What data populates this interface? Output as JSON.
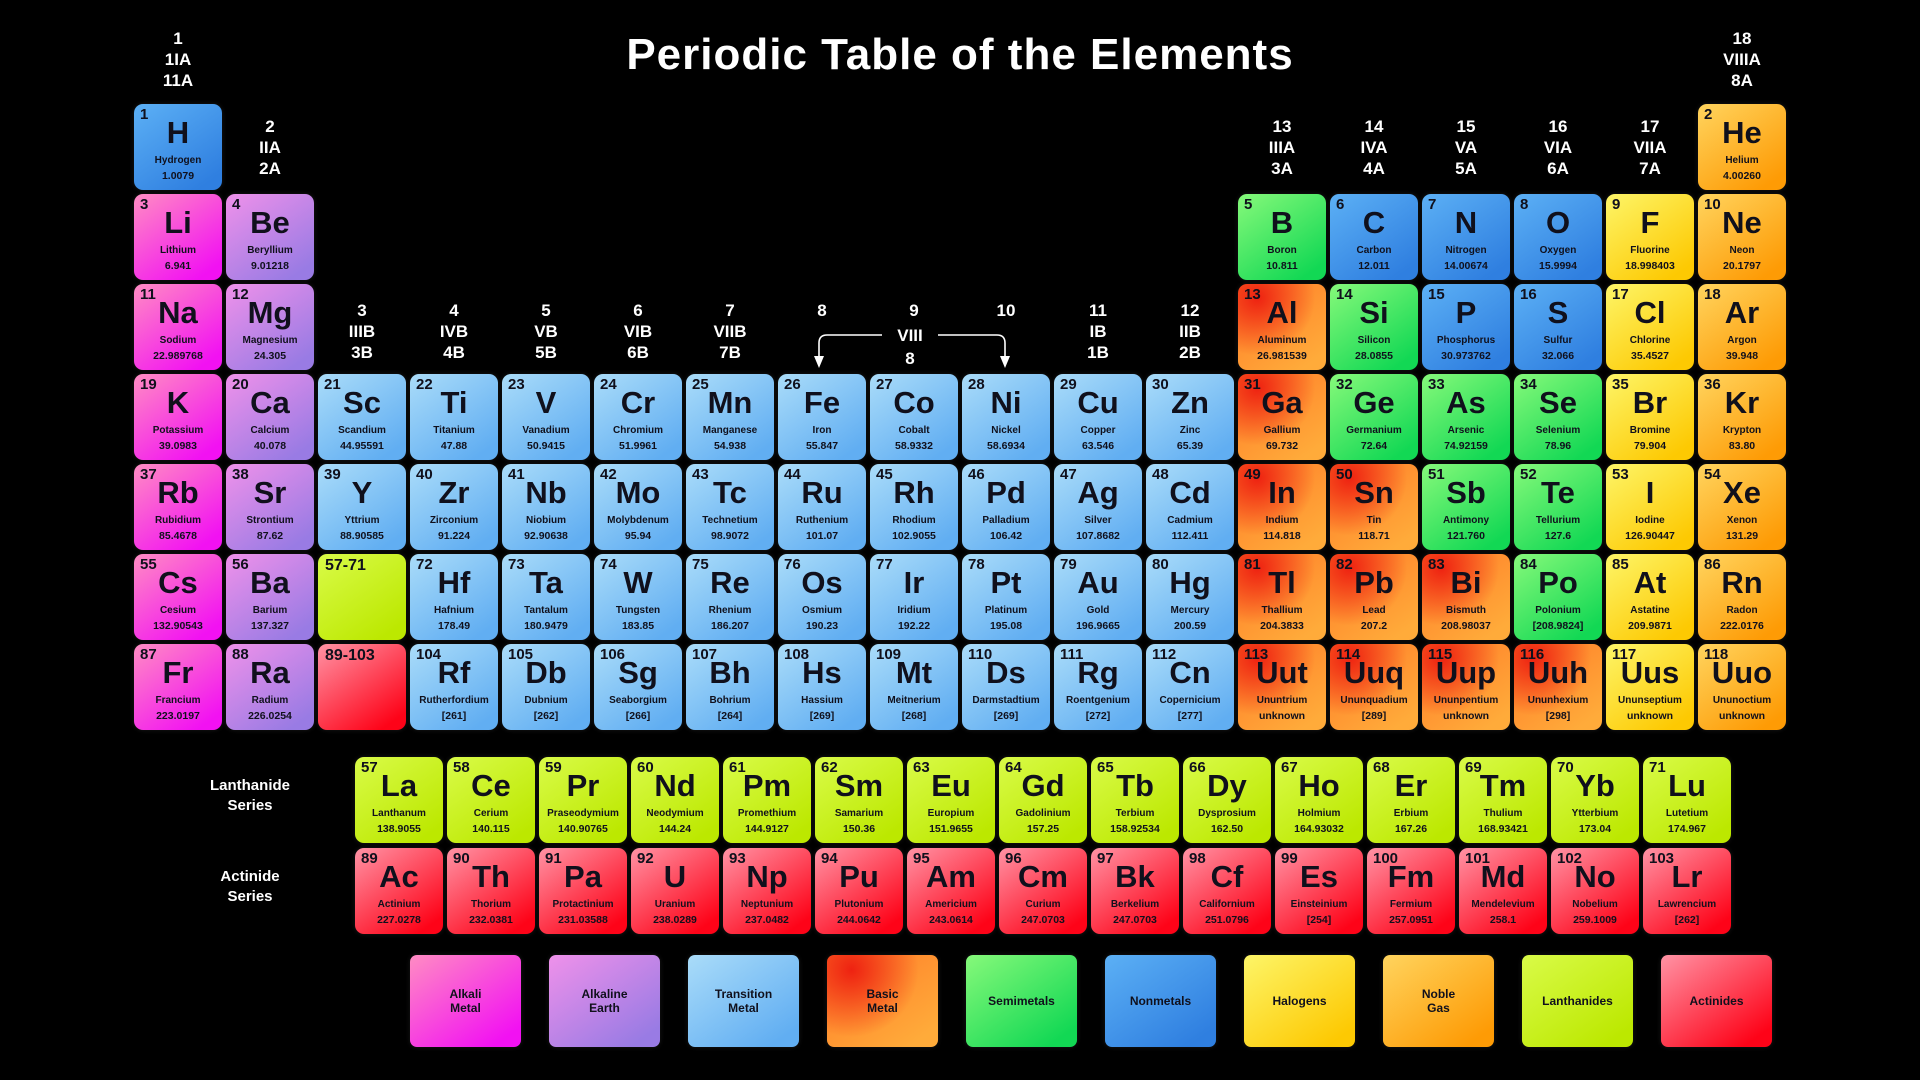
{
  "title": "Periodic Table of the Elements",
  "group_headers": [
    {
      "col": 1,
      "band": "top",
      "lines": [
        "1",
        "1IA",
        "11A"
      ]
    },
    {
      "col": 2,
      "band": "mid",
      "lines": [
        "2",
        "IIA",
        "2A"
      ]
    },
    {
      "col": 3,
      "band": "low",
      "lines": [
        "3",
        "IIIB",
        "3B"
      ]
    },
    {
      "col": 4,
      "band": "low",
      "lines": [
        "4",
        "IVB",
        "4B"
      ]
    },
    {
      "col": 5,
      "band": "low",
      "lines": [
        "5",
        "VB",
        "5B"
      ]
    },
    {
      "col": 6,
      "band": "low",
      "lines": [
        "6",
        "VIB",
        "6B"
      ]
    },
    {
      "col": 7,
      "band": "low",
      "lines": [
        "7",
        "VIIB",
        "7B"
      ]
    },
    {
      "col": 8,
      "band": "low",
      "lines": [
        "8"
      ]
    },
    {
      "col": 9,
      "band": "low",
      "lines": [
        "9"
      ]
    },
    {
      "col": 10,
      "band": "low",
      "lines": [
        "10"
      ]
    },
    {
      "col": 11,
      "band": "low",
      "lines": [
        "11",
        "IB",
        "1B"
      ]
    },
    {
      "col": 12,
      "band": "low",
      "lines": [
        "12",
        "IIB",
        "2B"
      ]
    },
    {
      "col": 13,
      "band": "mid",
      "lines": [
        "13",
        "IIIA",
        "3A"
      ]
    },
    {
      "col": 14,
      "band": "mid",
      "lines": [
        "14",
        "IVA",
        "4A"
      ]
    },
    {
      "col": 15,
      "band": "mid",
      "lines": [
        "15",
        "VA",
        "5A"
      ]
    },
    {
      "col": 16,
      "band": "mid",
      "lines": [
        "16",
        "VIA",
        "6A"
      ]
    },
    {
      "col": 17,
      "band": "mid",
      "lines": [
        "17",
        "VIIA",
        "7A"
      ]
    },
    {
      "col": 18,
      "band": "top",
      "lines": [
        "18",
        "VIIIA",
        "8A"
      ]
    }
  ],
  "viii_bracket": {
    "label": "VIII",
    "sub": "8"
  },
  "series_labels": {
    "lanthanide": [
      "Lanthanide",
      "Series"
    ],
    "actinide": [
      "Actinide",
      "Series"
    ]
  },
  "categories": {
    "alkali": {
      "name": "Alkali Metal",
      "from": "#ff8cc3",
      "to": "#f211f2",
      "spot": null
    },
    "alkaline": {
      "name": "Alkaline Earth",
      "from": "#ef91ea",
      "to": "#997be4",
      "spot": null
    },
    "transition": {
      "name": "Transition Metal",
      "from": "#aadcf9",
      "to": "#61aef2",
      "spot": null
    },
    "basic": {
      "name": "Basic Metal",
      "from": "#ff7a28",
      "to": "#ffab3a",
      "spot": "#ee2211"
    },
    "semimetal": {
      "name": "Semimetals",
      "from": "#86f97a",
      "to": "#12d854",
      "spot": null
    },
    "nonmetal": {
      "name": "Nonmetals",
      "from": "#5cb0f5",
      "to": "#2f7fe0",
      "spot": null
    },
    "halogen": {
      "name": "Halogens",
      "from": "#fdf568",
      "to": "#fdc902",
      "spot": null
    },
    "noble": {
      "name": "Noble Gas",
      "from": "#ffd45e",
      "to": "#fe9b05",
      "spot": null
    },
    "lanthanide": {
      "name": "Lanthanides",
      "from": "#d9fb48",
      "to": "#bce800",
      "spot": null
    },
    "actinide": {
      "name": "Actinides",
      "from": "#ff93a5",
      "to": "#fe0318",
      "spot": null
    }
  },
  "element_fields": [
    "number",
    "symbol",
    "name",
    "mass",
    "category",
    "row",
    "col"
  ],
  "elements": [
    [
      1,
      "H",
      "Hydrogen",
      "1.0079",
      "nonmetal",
      1,
      1
    ],
    [
      2,
      "He",
      "Helium",
      "4.00260",
      "noble",
      1,
      18
    ],
    [
      3,
      "Li",
      "Lithium",
      "6.941",
      "alkali",
      2,
      1
    ],
    [
      4,
      "Be",
      "Beryllium",
      "9.01218",
      "alkaline",
      2,
      2
    ],
    [
      5,
      "B",
      "Boron",
      "10.811",
      "semimetal",
      2,
      13
    ],
    [
      6,
      "C",
      "Carbon",
      "12.011",
      "nonmetal",
      2,
      14
    ],
    [
      7,
      "N",
      "Nitrogen",
      "14.00674",
      "nonmetal",
      2,
      15
    ],
    [
      8,
      "O",
      "Oxygen",
      "15.9994",
      "nonmetal",
      2,
      16
    ],
    [
      9,
      "F",
      "Fluorine",
      "18.998403",
      "halogen",
      2,
      17
    ],
    [
      10,
      "Ne",
      "Neon",
      "20.1797",
      "noble",
      2,
      18
    ],
    [
      11,
      "Na",
      "Sodium",
      "22.989768",
      "alkali",
      3,
      1
    ],
    [
      12,
      "Mg",
      "Magnesium",
      "24.305",
      "alkaline",
      3,
      2
    ],
    [
      13,
      "Al",
      "Aluminum",
      "26.981539",
      "basic",
      3,
      13
    ],
    [
      14,
      "Si",
      "Silicon",
      "28.0855",
      "semimetal",
      3,
      14
    ],
    [
      15,
      "P",
      "Phosphorus",
      "30.973762",
      "nonmetal",
      3,
      15
    ],
    [
      16,
      "S",
      "Sulfur",
      "32.066",
      "nonmetal",
      3,
      16
    ],
    [
      17,
      "Cl",
      "Chlorine",
      "35.4527",
      "halogen",
      3,
      17
    ],
    [
      18,
      "Ar",
      "Argon",
      "39.948",
      "noble",
      3,
      18
    ],
    [
      19,
      "K",
      "Potassium",
      "39.0983",
      "alkali",
      4,
      1
    ],
    [
      20,
      "Ca",
      "Calcium",
      "40.078",
      "alkaline",
      4,
      2
    ],
    [
      21,
      "Sc",
      "Scandium",
      "44.95591",
      "transition",
      4,
      3
    ],
    [
      22,
      "Ti",
      "Titanium",
      "47.88",
      "transition",
      4,
      4
    ],
    [
      23,
      "V",
      "Vanadium",
      "50.9415",
      "transition",
      4,
      5
    ],
    [
      24,
      "Cr",
      "Chromium",
      "51.9961",
      "transition",
      4,
      6
    ],
    [
      25,
      "Mn",
      "Manganese",
      "54.938",
      "transition",
      4,
      7
    ],
    [
      26,
      "Fe",
      "Iron",
      "55.847",
      "transition",
      4,
      8
    ],
    [
      27,
      "Co",
      "Cobalt",
      "58.9332",
      "transition",
      4,
      9
    ],
    [
      28,
      "Ni",
      "Nickel",
      "58.6934",
      "transition",
      4,
      10
    ],
    [
      29,
      "Cu",
      "Copper",
      "63.546",
      "transition",
      4,
      11
    ],
    [
      30,
      "Zn",
      "Zinc",
      "65.39",
      "transition",
      4,
      12
    ],
    [
      31,
      "Ga",
      "Gallium",
      "69.732",
      "basic",
      4,
      13
    ],
    [
      32,
      "Ge",
      "Germanium",
      "72.64",
      "semimetal",
      4,
      14
    ],
    [
      33,
      "As",
      "Arsenic",
      "74.92159",
      "semimetal",
      4,
      15
    ],
    [
      34,
      "Se",
      "Selenium",
      "78.96",
      "semimetal",
      4,
      16
    ],
    [
      35,
      "Br",
      "Bromine",
      "79.904",
      "halogen",
      4,
      17
    ],
    [
      36,
      "Kr",
      "Krypton",
      "83.80",
      "noble",
      4,
      18
    ],
    [
      37,
      "Rb",
      "Rubidium",
      "85.4678",
      "alkali",
      5,
      1
    ],
    [
      38,
      "Sr",
      "Strontium",
      "87.62",
      "alkaline",
      5,
      2
    ],
    [
      39,
      "Y",
      "Yttrium",
      "88.90585",
      "transition",
      5,
      3
    ],
    [
      40,
      "Zr",
      "Zirconium",
      "91.224",
      "transition",
      5,
      4
    ],
    [
      41,
      "Nb",
      "Niobium",
      "92.90638",
      "transition",
      5,
      5
    ],
    [
      42,
      "Mo",
      "Molybdenum",
      "95.94",
      "transition",
      5,
      6
    ],
    [
      43,
      "Tc",
      "Technetium",
      "98.9072",
      "transition",
      5,
      7
    ],
    [
      44,
      "Ru",
      "Ruthenium",
      "101.07",
      "transition",
      5,
      8
    ],
    [
      45,
      "Rh",
      "Rhodium",
      "102.9055",
      "transition",
      5,
      9
    ],
    [
      46,
      "Pd",
      "Palladium",
      "106.42",
      "transition",
      5,
      10
    ],
    [
      47,
      "Ag",
      "Silver",
      "107.8682",
      "transition",
      5,
      11
    ],
    [
      48,
      "Cd",
      "Cadmium",
      "112.411",
      "transition",
      5,
      12
    ],
    [
      49,
      "In",
      "Indium",
      "114.818",
      "basic",
      5,
      13
    ],
    [
      50,
      "Sn",
      "Tin",
      "118.71",
      "basic",
      5,
      14
    ],
    [
      51,
      "Sb",
      "Antimony",
      "121.760",
      "semimetal",
      5,
      15
    ],
    [
      52,
      "Te",
      "Tellurium",
      "127.6",
      "semimetal",
      5,
      16
    ],
    [
      53,
      "I",
      "Iodine",
      "126.90447",
      "halogen",
      5,
      17
    ],
    [
      54,
      "Xe",
      "Xenon",
      "131.29",
      "noble",
      5,
      18
    ],
    [
      55,
      "Cs",
      "Cesium",
      "132.90543",
      "alkali",
      6,
      1
    ],
    [
      56,
      "Ba",
      "Barium",
      "137.327",
      "alkaline",
      6,
      2
    ],
    [
      72,
      "Hf",
      "Hafnium",
      "178.49",
      "transition",
      6,
      4
    ],
    [
      73,
      "Ta",
      "Tantalum",
      "180.9479",
      "transition",
      6,
      5
    ],
    [
      74,
      "W",
      "Tungsten",
      "183.85",
      "transition",
      6,
      6
    ],
    [
      75,
      "Re",
      "Rhenium",
      "186.207",
      "transition",
      6,
      7
    ],
    [
      76,
      "Os",
      "Osmium",
      "190.23",
      "transition",
      6,
      8
    ],
    [
      77,
      "Ir",
      "Iridium",
      "192.22",
      "transition",
      6,
      9
    ],
    [
      78,
      "Pt",
      "Platinum",
      "195.08",
      "transition",
      6,
      10
    ],
    [
      79,
      "Au",
      "Gold",
      "196.9665",
      "transition",
      6,
      11
    ],
    [
      80,
      "Hg",
      "Mercury",
      "200.59",
      "transition",
      6,
      12
    ],
    [
      81,
      "Tl",
      "Thallium",
      "204.3833",
      "basic",
      6,
      13
    ],
    [
      82,
      "Pb",
      "Lead",
      "207.2",
      "basic",
      6,
      14
    ],
    [
      83,
      "Bi",
      "Bismuth",
      "208.98037",
      "basic",
      6,
      15
    ],
    [
      84,
      "Po",
      "Polonium",
      "[208.9824]",
      "semimetal",
      6,
      16
    ],
    [
      85,
      "At",
      "Astatine",
      "209.9871",
      "halogen",
      6,
      17
    ],
    [
      86,
      "Rn",
      "Radon",
      "222.0176",
      "noble",
      6,
      18
    ],
    [
      87,
      "Fr",
      "Francium",
      "223.0197",
      "alkali",
      7,
      1
    ],
    [
      88,
      "Ra",
      "Radium",
      "226.0254",
      "alkaline",
      7,
      2
    ],
    [
      104,
      "Rf",
      "Rutherfordium",
      "[261]",
      "transition",
      7,
      4
    ],
    [
      105,
      "Db",
      "Dubnium",
      "[262]",
      "transition",
      7,
      5
    ],
    [
      106,
      "Sg",
      "Seaborgium",
      "[266]",
      "transition",
      7,
      6
    ],
    [
      107,
      "Bh",
      "Bohrium",
      "[264]",
      "transition",
      7,
      7
    ],
    [
      108,
      "Hs",
      "Hassium",
      "[269]",
      "transition",
      7,
      8
    ],
    [
      109,
      "Mt",
      "Meitnerium",
      "[268]",
      "transition",
      7,
      9
    ],
    [
      110,
      "Ds",
      "Darmstadtium",
      "[269]",
      "transition",
      7,
      10
    ],
    [
      111,
      "Rg",
      "Roentgenium",
      "[272]",
      "transition",
      7,
      11
    ],
    [
      112,
      "Cn",
      "Copernicium",
      "[277]",
      "transition",
      7,
      12
    ],
    [
      113,
      "Uut",
      "Ununtrium",
      "unknown",
      "basic",
      7,
      13
    ],
    [
      114,
      "Uuq",
      "Ununquadium",
      "[289]",
      "basic",
      7,
      14
    ],
    [
      115,
      "Uup",
      "Ununpentium",
      "unknown",
      "basic",
      7,
      15
    ],
    [
      116,
      "Uuh",
      "Ununhexium",
      "[298]",
      "basic",
      7,
      16
    ],
    [
      117,
      "Uus",
      "Ununseptium",
      "unknown",
      "halogen",
      7,
      17
    ],
    [
      118,
      "Uuo",
      "Ununoctium",
      "unknown",
      "noble",
      7,
      18
    ],
    [
      57,
      "La",
      "Lanthanum",
      "138.9055",
      "lanthanide",
      8,
      1
    ],
    [
      58,
      "Ce",
      "Cerium",
      "140.115",
      "lanthanide",
      8,
      2
    ],
    [
      59,
      "Pr",
      "Praseodymium",
      "140.90765",
      "lanthanide",
      8,
      3
    ],
    [
      60,
      "Nd",
      "Neodymium",
      "144.24",
      "lanthanide",
      8,
      4
    ],
    [
      61,
      "Pm",
      "Promethium",
      "144.9127",
      "lanthanide",
      8,
      5
    ],
    [
      62,
      "Sm",
      "Samarium",
      "150.36",
      "lanthanide",
      8,
      6
    ],
    [
      63,
      "Eu",
      "Europium",
      "151.9655",
      "lanthanide",
      8,
      7
    ],
    [
      64,
      "Gd",
      "Gadolinium",
      "157.25",
      "lanthanide",
      8,
      8
    ],
    [
      65,
      "Tb",
      "Terbium",
      "158.92534",
      "lanthanide",
      8,
      9
    ],
    [
      66,
      "Dy",
      "Dysprosium",
      "162.50",
      "lanthanide",
      8,
      10
    ],
    [
      67,
      "Ho",
      "Holmium",
      "164.93032",
      "lanthanide",
      8,
      11
    ],
    [
      68,
      "Er",
      "Erbium",
      "167.26",
      "lanthanide",
      8,
      12
    ],
    [
      69,
      "Tm",
      "Thulium",
      "168.93421",
      "lanthanide",
      8,
      13
    ],
    [
      70,
      "Yb",
      "Ytterbium",
      "173.04",
      "lanthanide",
      8,
      14
    ],
    [
      71,
      "Lu",
      "Lutetium",
      "174.967",
      "lanthanide",
      8,
      15
    ],
    [
      89,
      "Ac",
      "Actinium",
      "227.0278",
      "actinide",
      9,
      1
    ],
    [
      90,
      "Th",
      "Thorium",
      "232.0381",
      "actinide",
      9,
      2
    ],
    [
      91,
      "Pa",
      "Protactinium",
      "231.03588",
      "actinide",
      9,
      3
    ],
    [
      92,
      "U",
      "Uranium",
      "238.0289",
      "actinide",
      9,
      4
    ],
    [
      93,
      "Np",
      "Neptunium",
      "237.0482",
      "actinide",
      9,
      5
    ],
    [
      94,
      "Pu",
      "Plutonium",
      "244.0642",
      "actinide",
      9,
      6
    ],
    [
      95,
      "Am",
      "Americium",
      "243.0614",
      "actinide",
      9,
      7
    ],
    [
      96,
      "Cm",
      "Curium",
      "247.0703",
      "actinide",
      9,
      8
    ],
    [
      97,
      "Bk",
      "Berkelium",
      "247.0703",
      "actinide",
      9,
      9
    ],
    [
      98,
      "Cf",
      "Californium",
      "251.0796",
      "actinide",
      9,
      10
    ],
    [
      99,
      "Es",
      "Einsteinium",
      "[254]",
      "actinide",
      9,
      11
    ],
    [
      100,
      "Fm",
      "Fermium",
      "257.0951",
      "actinide",
      9,
      12
    ],
    [
      101,
      "Md",
      "Mendelevium",
      "258.1",
      "actinide",
      9,
      13
    ],
    [
      102,
      "No",
      "Nobelium",
      "259.1009",
      "actinide",
      9,
      14
    ],
    [
      103,
      "Lr",
      "Lawrencium",
      "[262]",
      "actinide",
      9,
      15
    ]
  ],
  "placeholders": [
    {
      "label": "57-71",
      "category": "lanthanide",
      "row": 6,
      "col": 3
    },
    {
      "label": "89-103",
      "category": "actinide",
      "row": 7,
      "col": 3
    }
  ],
  "legend": [
    {
      "label_lines": [
        "Alkali",
        "Metal"
      ],
      "category": "alkali"
    },
    {
      "label_lines": [
        "Alkaline",
        "Earth"
      ],
      "category": "alkaline"
    },
    {
      "label_lines": [
        "Transition",
        "Metal"
      ],
      "category": "transition"
    },
    {
      "label_lines": [
        "Basic",
        "Metal"
      ],
      "category": "basic"
    },
    {
      "label_lines": [
        "Semimetals"
      ],
      "category": "semimetal"
    },
    {
      "label_lines": [
        "Nonmetals"
      ],
      "category": "nonmetal"
    },
    {
      "label_lines": [
        "Halogens"
      ],
      "category": "halogen"
    },
    {
      "label_lines": [
        "Noble",
        "Gas"
      ],
      "category": "noble"
    },
    {
      "label_lines": [
        "Lanthanides"
      ],
      "category": "lanthanide"
    },
    {
      "label_lines": [
        "Actinides"
      ],
      "category": "actinide"
    }
  ]
}
